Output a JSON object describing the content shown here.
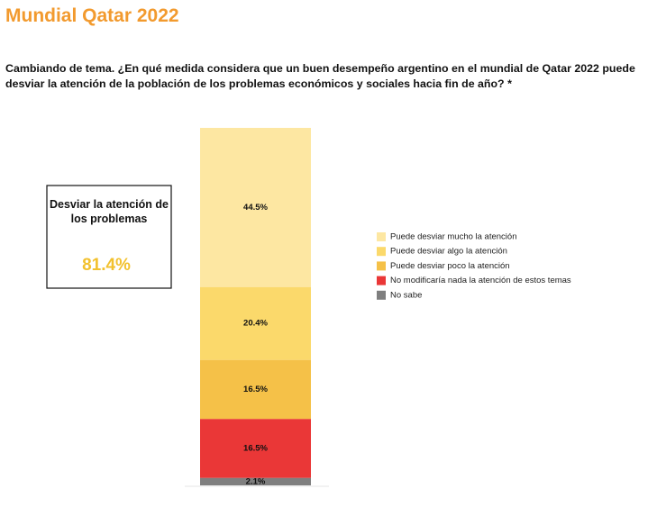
{
  "chart_data": {
    "type": "stacked-bar",
    "title": "Mundial Qatar 2022",
    "subtitle": "Cambiando de tema. ¿En qué medida considera que un buen desempeño argentino en el mundial de Qatar 2022 puede desviar la atención de la población de los problemas económicos y sociales hacia fin de año? *",
    "categories": [
      null
    ],
    "series": [
      {
        "name": "Puede desviar mucho la atención",
        "color": "#fde7a2",
        "values": [
          44.5
        ],
        "value_labels": [
          "44.5%"
        ]
      },
      {
        "name": "Puede desviar algo la atención",
        "color": "#fbd96b",
        "values": [
          20.4
        ],
        "value_labels": [
          "20.4%"
        ]
      },
      {
        "name": "Puede desviar poco la atención",
        "color": "#f5c148",
        "values": [
          16.5
        ],
        "value_labels": [
          "16.5%"
        ]
      },
      {
        "name": "No modificaría nada la atención de estos temas",
        "color": "#ea3737",
        "values": [
          16.5
        ],
        "value_labels": [
          "16.5%"
        ]
      },
      {
        "name": "No sabe",
        "color": "#7f7f7f",
        "values": [
          2.1
        ],
        "value_labels": [
          "2.1%"
        ]
      }
    ],
    "ylim": [
      0,
      100
    ],
    "annotation": {
      "label": "Desviar la atención de los problemas",
      "value": 81.4,
      "value_label": "81.4%"
    },
    "legend": "right"
  }
}
